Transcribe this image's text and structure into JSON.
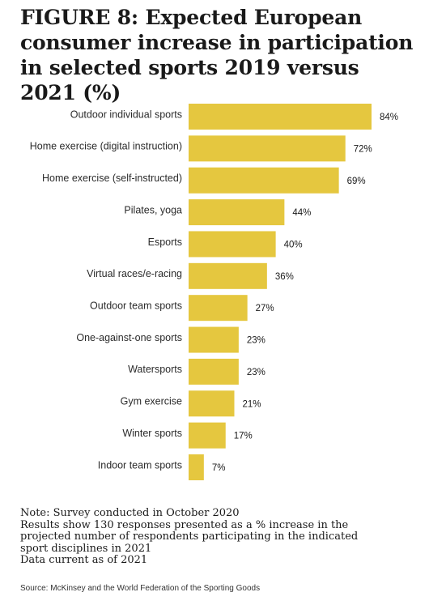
{
  "title": "FIGURE 8: Expected European consumer increase in participation in selected sports 2019 versus 2021 (%)",
  "notes": [
    "Note: Survey conducted in October 2020",
    "Results show 130 responses presented as a % increase in the",
    "projected number of respondents participating in the indicated",
    "sport disciplines in 2021",
    "Data current as of 2021"
  ],
  "source": "Source: McKinsey and the World Federation of the Sporting Goods",
  "colors": {
    "bar": "#e5c73f"
  },
  "chart_data": {
    "type": "bar",
    "orientation": "horizontal",
    "categories": [
      "Outdoor individual sports",
      "Home exercise (digital instruction)",
      "Home exercise (self-instructed)",
      "Pilates, yoga",
      "Esports",
      "Virtual races/e-racing",
      "Outdoor team sports",
      "One-against-one sports",
      "Watersports",
      "Gym exercise",
      "Winter sports",
      "Indoor team sports"
    ],
    "values": [
      84,
      72,
      69,
      44,
      40,
      36,
      27,
      23,
      23,
      21,
      17,
      7
    ],
    "value_labels": [
      "84%",
      "72%",
      "69%",
      "44%",
      "40%",
      "36%",
      "27%",
      "23%",
      "23%",
      "21%",
      "17%",
      "7%"
    ],
    "xlim": [
      0,
      84
    ],
    "grid": false,
    "legend": "none"
  }
}
